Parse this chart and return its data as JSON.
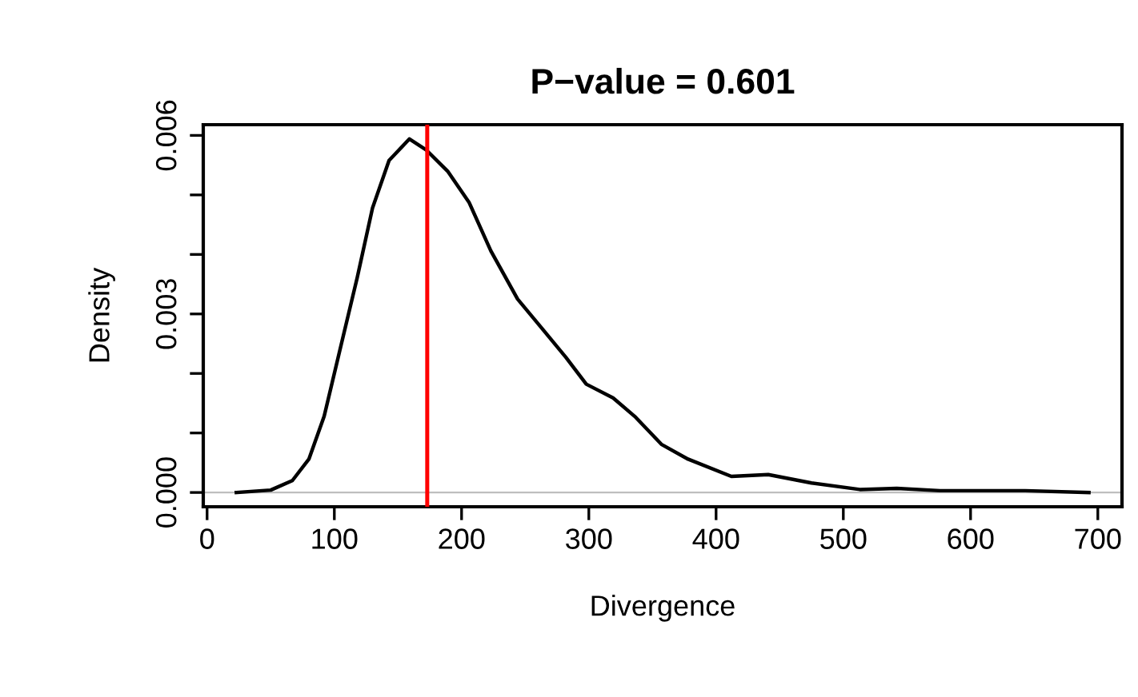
{
  "chart_data": {
    "type": "line",
    "title": "P−value = 0.601",
    "xlabel": "Divergence",
    "ylabel": "Density",
    "series": [
      {
        "color": "#000000",
        "x": [
          23,
          50,
          67,
          80,
          92,
          105,
          118,
          130,
          143,
          159,
          172,
          189,
          206,
          223,
          244,
          265,
          282,
          298,
          319,
          336,
          357,
          378,
          412,
          441,
          475,
          513,
          542,
          576,
          643,
          693
        ],
        "values": [
          0,
          4e-05,
          0.0002,
          0.00056,
          0.00128,
          0.00245,
          0.00361,
          0.00478,
          0.00558,
          0.00594,
          0.00576,
          0.0054,
          0.00487,
          0.00406,
          0.00325,
          0.00271,
          0.00227,
          0.00182,
          0.00159,
          0.00128,
          0.00081,
          0.00056,
          0.00027,
          0.0003,
          0.00016,
          5e-05,
          7e-05,
          3e-05,
          3e-05,
          0
        ]
      }
    ],
    "xlim": [
      -3,
      719
    ],
    "ylim": [
      -0.00024,
      0.00618
    ],
    "xticks": [
      0,
      100,
      200,
      300,
      400,
      500,
      600,
      700
    ],
    "yticks": [
      {
        "value": 0,
        "label": "0.000"
      },
      {
        "value": 0.001,
        "label": null
      },
      {
        "value": 0.002,
        "label": null
      },
      {
        "value": 0.003,
        "label": "0.003"
      },
      {
        "value": 0.004,
        "label": null
      },
      {
        "value": 0.005,
        "label": null
      },
      {
        "value": 0.006,
        "label": "0.006"
      }
    ],
    "ref_lines": [
      {
        "axis": "y",
        "value": 0,
        "color": "#bebebe"
      },
      {
        "axis": "x",
        "value": 173,
        "color": "#ff0000"
      }
    ],
    "grid": false,
    "legend": false
  }
}
